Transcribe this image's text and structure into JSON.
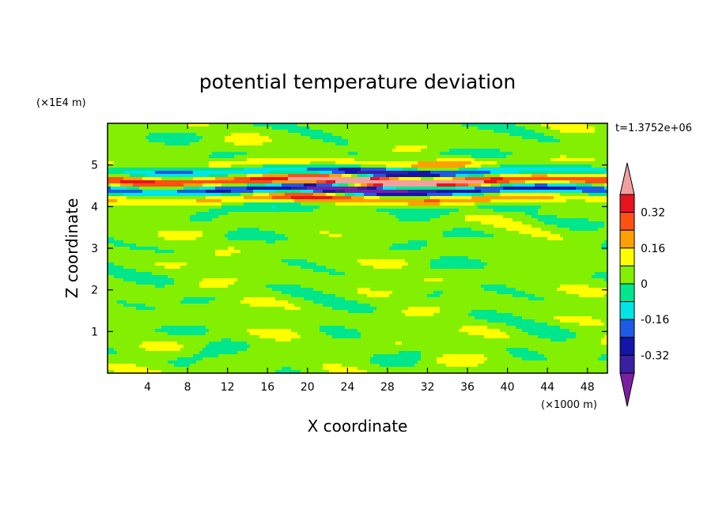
{
  "chart_data": {
    "type": "heatmap",
    "title": "potential temperature deviation",
    "xlabel": "X coordinate",
    "ylabel": "Z coordinate",
    "x_unit": "(×1000 m)",
    "y_unit": "(×1E4 m)",
    "time_label": "t=1.3752e+06",
    "xlim": [
      0,
      50
    ],
    "ylim": [
      0,
      6
    ],
    "x_ticks": [
      "4",
      "8",
      "12",
      "16",
      "20",
      "24",
      "28",
      "32",
      "36",
      "40",
      "44",
      "48"
    ],
    "y_ticks": [
      "1",
      "2",
      "3",
      "4",
      "5"
    ],
    "colorbar": {
      "levels": [
        -0.4,
        -0.32,
        -0.24,
        -0.16,
        -0.08,
        0,
        0.08,
        0.16,
        0.24,
        0.32,
        0.4
      ],
      "colors": [
        "#7b1fa2",
        "#3a1fa0",
        "#1414a8",
        "#1e5ae6",
        "#00e6e6",
        "#00e68c",
        "#82f000",
        "#ffff00",
        "#ffa000",
        "#ff5014",
        "#e6141e",
        "#f0a0a0"
      ],
      "tick_labels": [
        "0.32",
        "0.16",
        "0",
        "-0.16",
        "-0.32"
      ],
      "tick_values": [
        0.32,
        0.16,
        0,
        -0.16,
        -0.32
      ]
    },
    "bands": [
      {
        "z_range": [
          0,
          0.9
        ],
        "value": "0 to 0.08, alternating with -0.08 to 0"
      },
      {
        "z_range": [
          0.9,
          3.6
        ],
        "value": "-0.08 to 0.08 wavy layers"
      },
      {
        "z_range": [
          3.9,
          5.1
        ],
        "value": "alternating layers from -0.40 to 0.40"
      },
      {
        "z_range": [
          5.1,
          6.0
        ],
        "value": "-0.08 to 0.08"
      }
    ]
  }
}
